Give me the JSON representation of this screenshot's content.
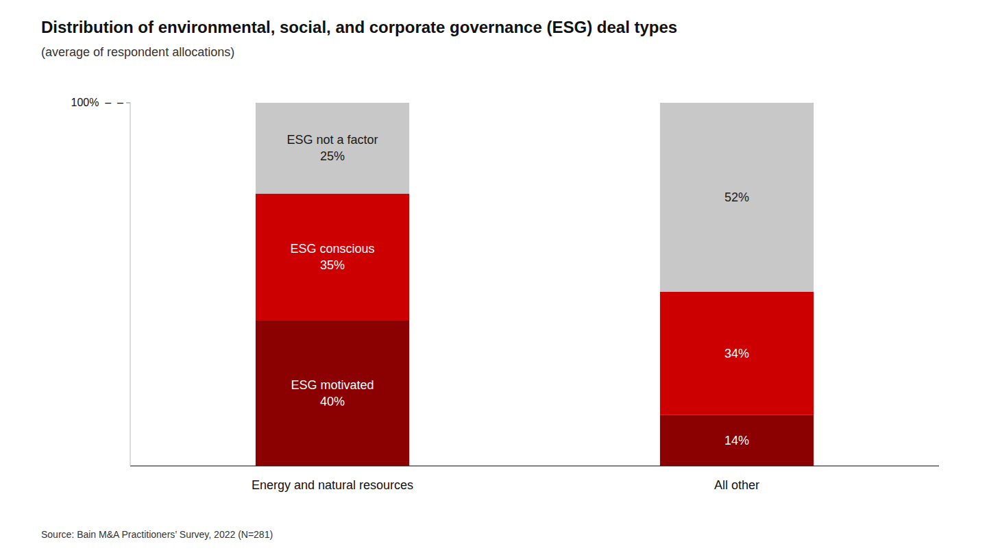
{
  "chart_data": {
    "type": "bar",
    "stacked": true,
    "title": "Distribution of environmental, social, and corporate governance (ESG) deal types",
    "subtitle": "(average of respondent allocations)",
    "source": "Source: Bain M&A Practitioners’ Survey, 2022 (N=281)",
    "categories": [
      "Energy and natural resources",
      "All other"
    ],
    "series": [
      {
        "name": "ESG motivated",
        "color": "#8B0000",
        "values": [
          40,
          14
        ],
        "value_labels": [
          "ESG motivated\n40%",
          "14%"
        ]
      },
      {
        "name": "ESG conscious",
        "color": "#CC0000",
        "values": [
          35,
          34
        ],
        "value_labels": [
          "ESG conscious\n35%",
          "34%"
        ]
      },
      {
        "name": "ESG not a factor",
        "color": "#C8C8C8",
        "values": [
          25,
          52
        ],
        "value_labels": [
          "ESG not a factor\n25%",
          "52%"
        ]
      }
    ],
    "ylim": [
      0,
      100
    ],
    "yticks": [
      {
        "value": 100,
        "label": "100%  –  –"
      }
    ],
    "data_labels": true,
    "grid": false
  }
}
